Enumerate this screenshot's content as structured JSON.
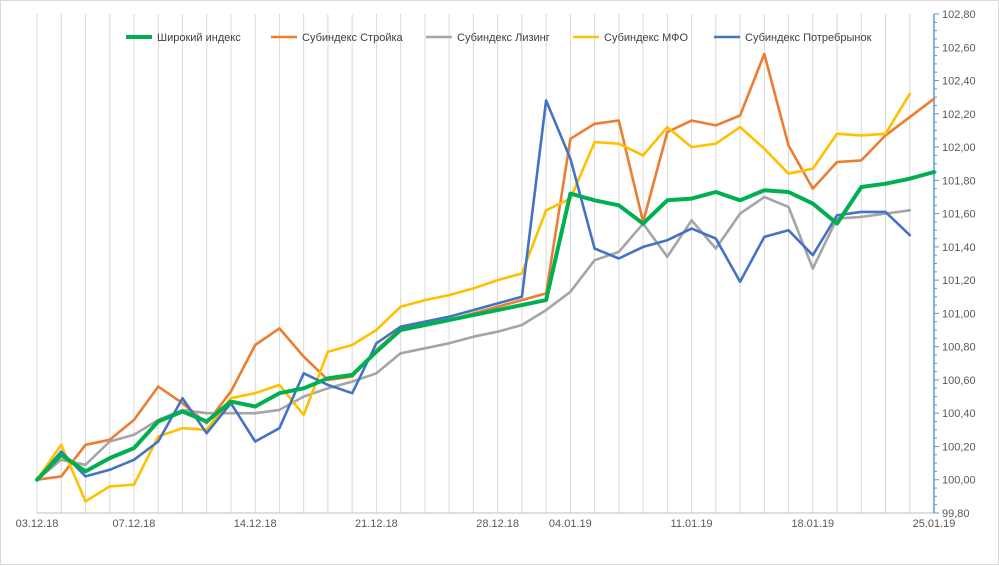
{
  "chart_data": {
    "type": "line",
    "title": "",
    "xlabel": "",
    "ylabel": "",
    "ylim": [
      99.8,
      102.8
    ],
    "y_step": 0.2,
    "y_axis_position": "right",
    "grid": "vertical",
    "legend_position": "top",
    "x_tick_labels": [
      "03.12.18",
      "07.12.18",
      "14.12.18",
      "21.12.18",
      "28.12.18",
      "04.01.19",
      "11.01.19",
      "18.01.19",
      "25.01.19"
    ],
    "x_tick_index": [
      0,
      4,
      9,
      14,
      19,
      22,
      27,
      32,
      37
    ],
    "y_tick_labels": [
      "99,80",
      "100,00",
      "100,20",
      "100,40",
      "100,60",
      "100,80",
      "101,00",
      "101,20",
      "101,40",
      "101,60",
      "101,80",
      "102,00",
      "102,20",
      "102,40",
      "102,60",
      "102,80"
    ],
    "series": [
      {
        "name": "Широкий индекс",
        "color": "#00b050",
        "values": [
          100.0,
          100.15,
          100.05,
          100.13,
          100.19,
          100.35,
          100.41,
          100.35,
          100.47,
          100.44,
          100.52,
          100.55,
          100.61,
          100.63,
          100.77,
          100.9,
          100.93,
          100.96,
          100.99,
          101.02,
          101.05,
          101.08,
          101.72,
          101.68,
          101.65,
          101.54,
          101.68,
          101.69,
          101.73,
          101.68,
          101.74,
          101.73,
          101.66,
          101.54,
          101.76,
          101.78,
          101.81,
          101.85
        ]
      },
      {
        "name": "Субиндекс Стройка",
        "color": "#ed7d31",
        "values": [
          100.0,
          100.02,
          100.21,
          100.24,
          100.36,
          100.56,
          100.46,
          100.34,
          100.53,
          100.81,
          100.91,
          100.74,
          100.6,
          100.62,
          100.78,
          100.91,
          100.93,
          100.96,
          101.0,
          101.04,
          101.08,
          101.12,
          102.05,
          102.14,
          102.16,
          101.55,
          102.09,
          102.16,
          102.13,
          102.19,
          102.56,
          102.01,
          101.75,
          101.91,
          101.92,
          102.07,
          102.18,
          102.29
        ]
      },
      {
        "name": "Субиндекс Лизинг",
        "color": "#a5a5a5",
        "values": [
          100.0,
          100.12,
          100.09,
          100.23,
          100.27,
          100.36,
          100.42,
          100.4,
          100.4,
          100.4,
          100.42,
          100.5,
          100.55,
          100.59,
          100.64,
          100.76,
          100.79,
          100.82,
          100.86,
          100.89,
          100.93,
          101.02,
          101.13,
          101.32,
          101.37,
          101.54,
          101.34,
          101.56,
          101.39,
          101.6,
          101.7,
          101.64,
          101.27,
          101.57,
          101.58,
          101.6,
          101.62
        ]
      },
      {
        "name": "Субиндекс МФО",
        "color": "#ffc000",
        "values": [
          100.0,
          100.21,
          99.87,
          99.96,
          99.97,
          100.26,
          100.31,
          100.3,
          100.49,
          100.52,
          100.57,
          100.39,
          100.77,
          100.81,
          100.9,
          101.04,
          101.08,
          101.11,
          101.15,
          101.2,
          101.24,
          101.62,
          101.69,
          102.03,
          102.02,
          101.95,
          102.12,
          102.0,
          102.02,
          102.12,
          101.99,
          101.84,
          101.87,
          102.08,
          102.07,
          102.08,
          102.32
        ]
      },
      {
        "name": "Субиндекс Потребрынок",
        "color": "#4472c4",
        "values": [
          100.0,
          100.17,
          100.02,
          100.06,
          100.12,
          100.23,
          100.49,
          100.28,
          100.46,
          100.23,
          100.31,
          100.64,
          100.57,
          100.52,
          100.82,
          100.92,
          100.95,
          100.98,
          101.02,
          101.06,
          101.1,
          102.28,
          101.93,
          101.39,
          101.33,
          101.4,
          101.44,
          101.51,
          101.45,
          101.19,
          101.46,
          101.5,
          101.35,
          101.59,
          101.61,
          101.61,
          101.47
        ]
      }
    ]
  }
}
